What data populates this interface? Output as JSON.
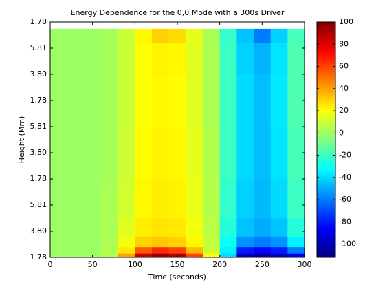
{
  "chart_data": {
    "type": "heatmap",
    "title": "Energy Dependence for the 0,0 Mode with a 300s Driver",
    "xlabel": "Time (seconds)",
    "ylabel": "Height (Mm)",
    "colormap": "jet",
    "x": [
      0,
      20,
      40,
      60,
      80,
      100,
      120,
      140,
      160,
      180,
      200,
      220,
      240,
      260,
      280,
      300
    ],
    "y": [
      0,
      0.15,
      0.4,
      0.8,
      1.5,
      3,
      5,
      7,
      8.2,
      8.74
    ],
    "z": [
      [
        0,
        0,
        0,
        5,
        40,
        85,
        95,
        90,
        60,
        20,
        -40,
        -100,
        -105,
        -100,
        -90
      ],
      [
        0,
        0,
        0,
        4,
        25,
        55,
        65,
        60,
        35,
        10,
        -35,
        -80,
        -85,
        -80,
        -60
      ],
      [
        0,
        0,
        0,
        3,
        18,
        30,
        32,
        30,
        22,
        8,
        -30,
        -55,
        -60,
        -55,
        -35
      ],
      [
        0,
        0,
        0,
        3,
        14,
        24,
        26,
        25,
        18,
        6,
        -25,
        -45,
        -50,
        -45,
        -25
      ],
      [
        0,
        0,
        0,
        3,
        11,
        22,
        24,
        23,
        16,
        5,
        -22,
        -42,
        -47,
        -40,
        -20
      ],
      [
        0,
        0,
        0,
        2,
        10,
        21,
        23,
        22,
        15,
        4,
        -20,
        -40,
        -46,
        -38,
        -18
      ],
      [
        0,
        0,
        0,
        2,
        9,
        20,
        22,
        21,
        14,
        3,
        -20,
        -40,
        -46,
        -37,
        -16
      ],
      [
        0,
        0,
        0,
        2,
        9,
        20,
        23,
        22,
        14,
        3,
        -20,
        -42,
        -48,
        -38,
        -16
      ],
      [
        0,
        0,
        0,
        2,
        9,
        22,
        30,
        28,
        15,
        3,
        -22,
        -45,
        -60,
        -42,
        -18
      ]
    ],
    "xlim": [
      0,
      300
    ],
    "xticks": [
      0,
      50,
      100,
      150,
      200,
      250,
      300
    ],
    "ylim": [
      0,
      9
    ],
    "yticks": [
      {
        "value": 0,
        "label": "1.78"
      },
      {
        "value": 1,
        "label": "3.80"
      },
      {
        "value": 2,
        "label": "5.81"
      },
      {
        "value": 3,
        "label": "1.78"
      },
      {
        "value": 4,
        "label": "3.80"
      },
      {
        "value": 5,
        "label": "5.81"
      },
      {
        "value": 6,
        "label": "1.78"
      },
      {
        "value": 7,
        "label": "3.80"
      },
      {
        "value": 8,
        "label": "5.81"
      },
      {
        "value": 9,
        "label": "1.78"
      }
    ],
    "clim": [
      -112,
      100
    ],
    "cticks": [
      -100,
      -80,
      -60,
      -40,
      -20,
      0,
      20,
      40,
      60,
      80,
      100
    ]
  }
}
